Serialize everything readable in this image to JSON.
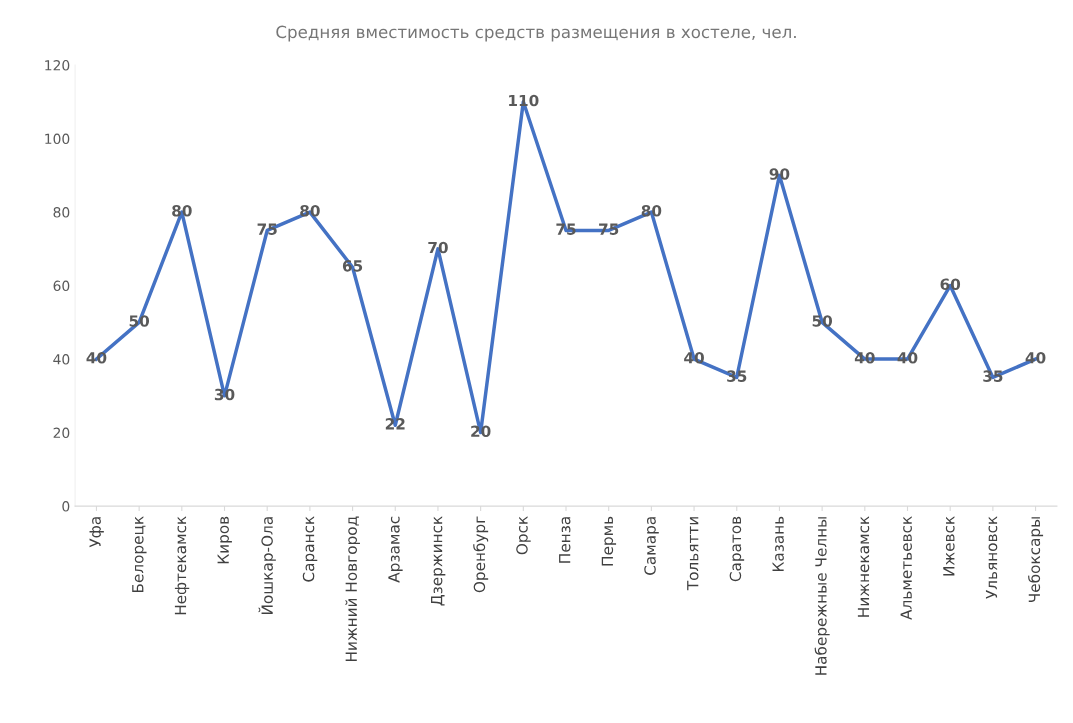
{
  "chart_data": {
    "type": "line",
    "title": "Средняя вместимость средств размещения в хостеле, чел.",
    "categories": [
      "Уфа",
      "Белорецк",
      "Нефтекамск",
      "Киров",
      "Йошкар-Ола",
      "Саранск",
      "Нижний Новгород",
      "Арзамас",
      "Дзержинск",
      "Оренбург",
      "Орск",
      "Пенза",
      "Пермь",
      "Самара",
      "Тольятти",
      "Саратов",
      "Казань",
      "Набережные Челны",
      "Нижнекамск",
      "Альметьевск",
      "Ижевск",
      "Ульяновск",
      "Чебоксары"
    ],
    "series": [
      {
        "color": "#4472c4",
        "values": [
          40,
          50,
          80,
          30,
          75,
          80,
          65,
          22,
          70,
          20,
          110,
          75,
          75,
          80,
          40,
          35,
          90,
          50,
          40,
          40,
          60,
          35,
          40
        ]
      }
    ],
    "ylim": [
      0,
      120
    ],
    "yticks": [
      0,
      20,
      40,
      60,
      80,
      100,
      120
    ],
    "grid": false,
    "legend": false,
    "marker": "none",
    "line_style": "solid",
    "data_labels": true
  }
}
